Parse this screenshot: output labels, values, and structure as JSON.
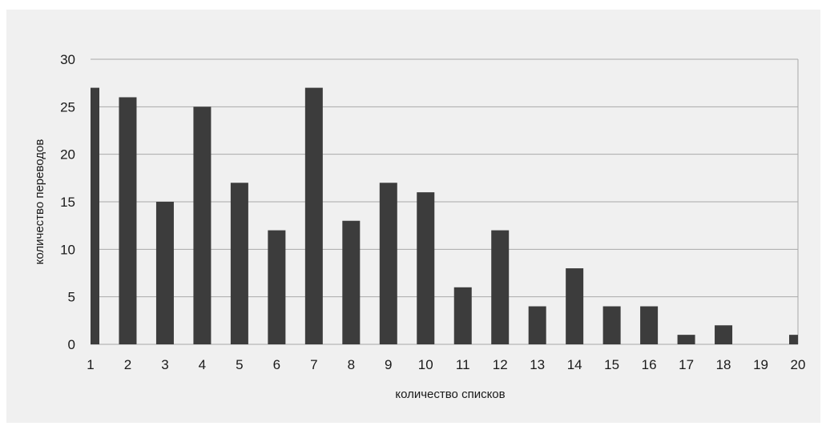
{
  "chart_data": {
    "type": "bar",
    "title": "",
    "xlabel": "количество списков",
    "ylabel": "количество переводов",
    "categories": [
      "1",
      "2",
      "3",
      "4",
      "5",
      "6",
      "7",
      "8",
      "9",
      "10",
      "11",
      "12",
      "13",
      "14",
      "15",
      "16",
      "17",
      "18",
      "19",
      "20"
    ],
    "values": [
      27,
      26,
      15,
      25,
      17,
      12,
      27,
      13,
      17,
      16,
      6,
      12,
      4,
      8,
      4,
      4,
      1,
      2,
      0,
      1
    ],
    "ylim": [
      0,
      30
    ],
    "yticks": [
      "0",
      "5",
      "10",
      "15",
      "20",
      "25",
      "30"
    ],
    "grid": true,
    "legend": "none",
    "colors": {
      "bar": "#3c3c3c",
      "background": "#f0f0f0",
      "grid": "#a9a9a9"
    }
  }
}
